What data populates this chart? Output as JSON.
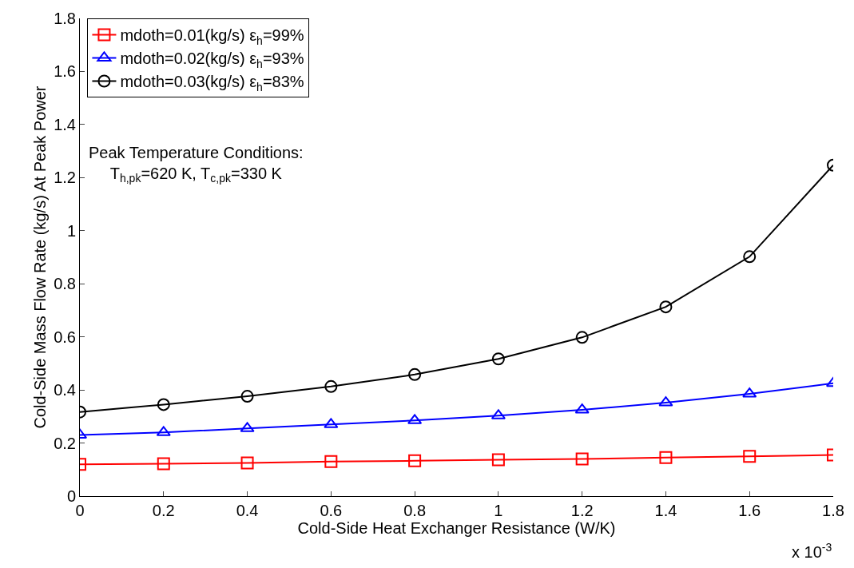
{
  "chart_data": {
    "type": "line",
    "xlabel": "Cold-Side Heat Exchanger Resistance (W/K)",
    "ylabel": "Cold-Side Mass Flow Rate (kg/s) At Peak Power",
    "x": [
      0,
      0.2,
      0.4,
      0.6,
      0.8,
      1,
      1.2,
      1.4,
      1.6,
      1.8
    ],
    "series": [
      {
        "name": "mdoth=0.01(kg/s) ε$_{h}$=99%",
        "color": "#ff0000",
        "marker": "square",
        "values": [
          0.12,
          0.122,
          0.125,
          0.13,
          0.133,
          0.137,
          0.14,
          0.145,
          0.15,
          0.155
        ]
      },
      {
        "name": "mdoth=0.02(kg/s) ε$_{h}$=93%",
        "color": "#0000ff",
        "marker": "triangle",
        "values": [
          0.23,
          0.24,
          0.255,
          0.27,
          0.285,
          0.303,
          0.325,
          0.352,
          0.385,
          0.425
        ]
      },
      {
        "name": "mdoth=0.03(kg/s) ε$_{h}$=83%",
        "color": "#000000",
        "marker": "circle",
        "values": [
          0.317,
          0.345,
          0.376,
          0.413,
          0.458,
          0.517,
          0.598,
          0.713,
          0.902,
          1.247
        ]
      }
    ],
    "xlim": [
      0,
      1.8
    ],
    "xticks": [
      0,
      0.2,
      0.4,
      0.6,
      0.8,
      1,
      1.2,
      1.4,
      1.6,
      1.8
    ],
    "ylim": [
      0,
      1.8
    ],
    "yticks": [
      0,
      0.2,
      0.4,
      0.6,
      0.8,
      1,
      1.2,
      1.4,
      1.6,
      1.8
    ],
    "grid": false,
    "legend": "top left",
    "line_style": "solid",
    "annotations": [
      "Peak Temperature Conditions:\nT$_{h,pk}$=620 K, T$_{c,pk}$=330 K",
      "x 10$^{-3}$"
    ]
  }
}
